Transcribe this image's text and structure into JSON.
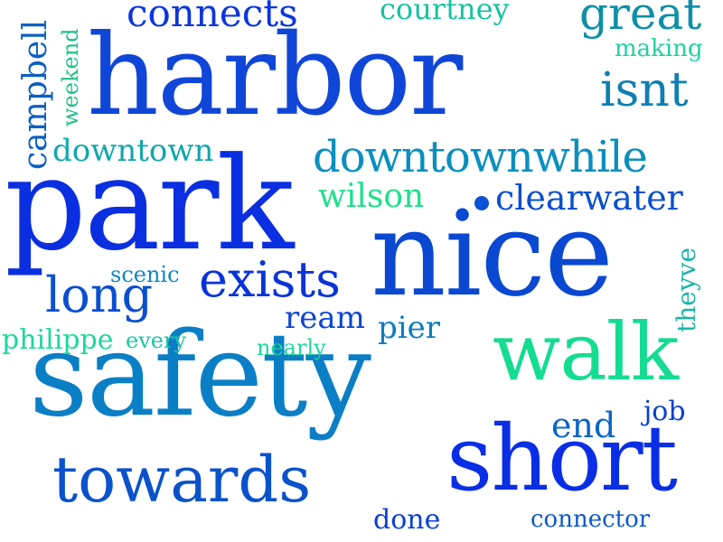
{
  "words": [
    {
      "text": "harbor",
      "color": "#1046d8"
    },
    {
      "text": "park",
      "color": "#0a2fe0"
    },
    {
      "text": "nice",
      "color": "#0a48d2"
    },
    {
      "text": "safety",
      "color": "#0a7fc6"
    },
    {
      "text": "short",
      "color": "#0a2ee6"
    },
    {
      "text": "walk",
      "color": "#14dc92"
    },
    {
      "text": "towards",
      "color": "#0a52cc"
    },
    {
      "text": "downtownwhile",
      "color": "#0b8fbd"
    },
    {
      "text": "connects",
      "color": "#0b36dc"
    },
    {
      "text": "great",
      "color": "#0d8fa8"
    },
    {
      "text": "courtney",
      "color": "#16c2a0"
    },
    {
      "text": "making",
      "color": "#22cfa0"
    },
    {
      "text": "isnt",
      "color": "#0d7fb3"
    },
    {
      "text": "campbell",
      "color": "#0c5fc4"
    },
    {
      "text": "weekend",
      "color": "#1ec08a"
    },
    {
      "text": "downtown",
      "color": "#0ea7ad"
    },
    {
      "text": "wilson",
      "color": "#1de08a"
    },
    {
      "text": "clearwater",
      "color": "#0a4fd0"
    },
    {
      "text": "theyve",
      "color": "#1ab5a6"
    },
    {
      "text": "scenic",
      "color": "#0e87c2"
    },
    {
      "text": "exists",
      "color": "#0a33d8"
    },
    {
      "text": "long",
      "color": "#0a4fd0"
    },
    {
      "text": "ream",
      "color": "#0b45d4"
    },
    {
      "text": "pier",
      "color": "#0b7cc0"
    },
    {
      "text": "philippe",
      "color": "#1bd89b"
    },
    {
      "text": "every",
      "color": "#1ec5a2"
    },
    {
      "text": "nearly",
      "color": "#1fd79c"
    },
    {
      "text": "end",
      "color": "#0b64c8"
    },
    {
      "text": "job",
      "color": "#0a3fd4"
    },
    {
      "text": "done",
      "color": "#0a3ed8"
    },
    {
      "text": "connector",
      "color": "#0b59c8"
    }
  ],
  "dot_color": "#0b52d6"
}
